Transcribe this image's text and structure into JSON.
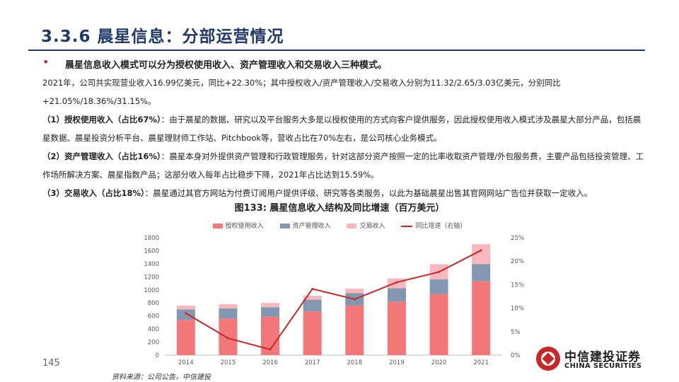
{
  "slide": {
    "title": "3.3.6 晨星信息：分部运营情况",
    "bullet": "晨星信息收入模式可以分为授权使用收入、资产管理收入和交易收入三种模式。",
    "para1": "2021年，公司共实现营业收入16.99亿美元，同比+22.30%；其中授权收入/资产管理收入/交易收入分别为11.32/2.65/3.03亿美元，分别同比+21.05%/18.36%/31.15%。",
    "para2_lead": "（1）授权使用收入（占比67%）",
    "para2_body": "：由于晨星的数据、研究以及平台服务大多是以授权使用的方式向客户提供服务，因此授权使用收入模式涉及晨星大部分产品，包括晨星数据、晨星投资分析平台、晨星理财师工作站、Pitchbook等，营收占比在70%左右，是公司核心业务模式。",
    "para3_lead": "（2）资产管理收入（占比16%）",
    "para3_body": "：晨星本身对外提供资产管理和行政管理服务，针对这部分资产按照一定的比率收取资产管理/外包服务费，主要产品包括投资管理、工作场所解决方案、晨星指数产品；这部分收入每年占比稳步下降，2021年占比达到15.59%。",
    "para4_lead": "（3）交易收入（占比18%）",
    "para4_body": "：晨星通过其官方网站为付费订阅用户提供评级、研究等各类服务，以此为基础晨星出售其官网网站广告位并获取一定收入。",
    "chart_caption": "图133: 晨星信息收入结构及同比增速（百万美元）",
    "page_number": "145",
    "source": "资料来源：公司公告，中信建投",
    "logo_cn": "中信建投证券",
    "logo_en": "CHINA SECURITIES"
  },
  "colors": {
    "title": "#1f3a68",
    "bar_license": "#f4777a",
    "bar_asset": "#8497b0",
    "bar_transaction": "#f9b8bd",
    "line_growth": "#c62828",
    "brand_red": "#c62828"
  },
  "chart_data": {
    "type": "bar",
    "stacked": true,
    "categories": [
      "2014",
      "2015",
      "2016",
      "2017",
      "2018",
      "2019",
      "2020",
      "2021"
    ],
    "series": [
      {
        "name": "授权使用收入",
        "type": "bar",
        "axis": "left",
        "values": [
          540,
          560,
          590,
          670,
          760,
          820,
          935,
          1132
        ]
      },
      {
        "name": "资产管理收入",
        "type": "bar",
        "axis": "left",
        "values": [
          160,
          155,
          145,
          180,
          190,
          205,
          225,
          265
        ]
      },
      {
        "name": "交易收入",
        "type": "bar",
        "axis": "left",
        "values": [
          60,
          65,
          65,
          60,
          70,
          150,
          235,
          303
        ]
      },
      {
        "name": "同比增速（右轴）",
        "type": "line",
        "axis": "right",
        "values": [
          0.089,
          0.036,
          0.012,
          0.141,
          0.119,
          0.155,
          0.177,
          0.223
        ]
      }
    ],
    "y_left": {
      "ticks": [
        "0",
        "200",
        "400",
        "600",
        "800",
        "1000",
        "1200",
        "1400",
        "1600",
        "1800"
      ],
      "range": [
        0,
        1800
      ]
    },
    "y_right": {
      "ticks": [
        "0%",
        "5%",
        "10%",
        "15%",
        "20%",
        "25%"
      ],
      "range": [
        0,
        0.25
      ]
    },
    "grid": false,
    "legend_position": "top"
  }
}
